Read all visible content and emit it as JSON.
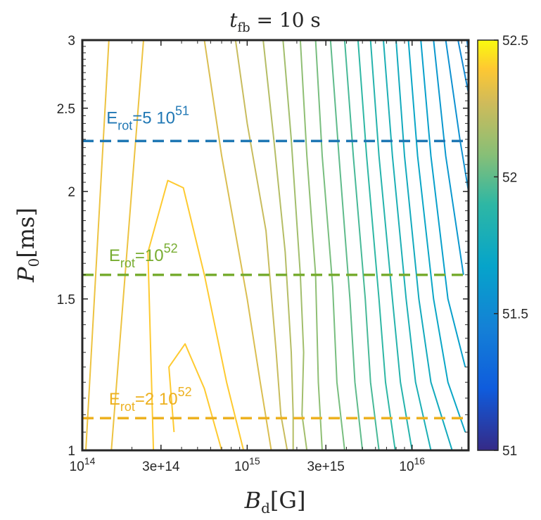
{
  "chart_data": {
    "type": "contour",
    "title": {
      "var": "t",
      "sub": "fb",
      "rest": " = 10 s"
    },
    "xlabel": {
      "var": "B",
      "sub": "d",
      "unit": "[G]"
    },
    "ylabel": {
      "var": "P",
      "sub": "0",
      "unit": "[ms]"
    },
    "x_scale": "log",
    "y_scale": "log",
    "xlim": [
      100000000000000.0,
      2.2e+16
    ],
    "ylim": [
      1,
      3
    ],
    "x_ticks": [
      {
        "value": 100000000000000.0,
        "label": "10",
        "sup": "14"
      },
      {
        "value": 300000000000000.0,
        "label": "3e+14",
        "sup": ""
      },
      {
        "value": 1000000000000000.0,
        "label": "10",
        "sup": "15"
      },
      {
        "value": 3000000000000000.0,
        "label": "3e+15",
        "sup": ""
      },
      {
        "value": 1e+16,
        "label": "10",
        "sup": "16"
      }
    ],
    "y_ticks": [
      {
        "value": 1,
        "label": "1"
      },
      {
        "value": 1.5,
        "label": "1.5"
      },
      {
        "value": 2,
        "label": "2"
      },
      {
        "value": 2.5,
        "label": "2.5"
      },
      {
        "value": 3,
        "label": "3"
      }
    ],
    "colorbar": {
      "range": [
        51,
        52.5
      ],
      "ticks": [
        51,
        51.5,
        52,
        52.5
      ],
      "tick_labels": [
        "51",
        "51.5",
        "52",
        "52.5"
      ]
    },
    "contours": [
      {
        "level": 52.4,
        "points": [
          [
            360000000000000.0,
            1.05
          ],
          [
            335000000000000.0,
            1.25
          ],
          [
            420000000000000.0,
            1.33
          ],
          [
            550000000000000.0,
            1.18
          ],
          [
            700000000000000.0,
            1.0
          ]
        ]
      },
      {
        "level": 52.4,
        "points": [
          [
            270000000000000.0,
            1.0
          ],
          [
            250000000000000.0,
            1.7
          ],
          [
            330000000000000.0,
            2.06
          ],
          [
            410000000000000.0,
            2.02
          ],
          [
            550000000000000.0,
            1.6
          ],
          [
            750000000000000.0,
            1.2
          ],
          [
            950000000000000.0,
            1.0
          ]
        ]
      },
      {
        "level": 52.35,
        "points": [
          [
            105000000000000.0,
            1.0
          ],
          [
            145000000000000.0,
            3.0
          ]
        ]
      },
      {
        "level": 52.35,
        "points": [
          [
            150000000000000.0,
            1.0
          ],
          [
            235000000000000.0,
            3.0
          ]
        ]
      },
      {
        "level": 52.3,
        "points": [
          [
            550000000000000.0,
            3.0
          ],
          [
            700000000000000.0,
            2.2
          ],
          [
            1000000000000000.0,
            1.5
          ],
          [
            1200000000000000.0,
            1.2
          ],
          [
            1400000000000000.0,
            1.0
          ]
        ]
      },
      {
        "level": 52.25,
        "points": [
          [
            850000000000000.0,
            3.0
          ],
          [
            1000000000000000.0,
            2.4
          ],
          [
            1300000000000000.0,
            1.8
          ],
          [
            1500000000000000.0,
            1.3
          ],
          [
            1600000000000000.0,
            1.1
          ],
          [
            1750000000000000.0,
            1.0
          ]
        ]
      },
      {
        "level": 52.2,
        "points": [
          [
            1250000000000000.0,
            3.0
          ],
          [
            1450000000000000.0,
            2.3
          ],
          [
            1700000000000000.0,
            1.7
          ],
          [
            1850000000000000.0,
            1.3
          ],
          [
            1900000000000000.0,
            1.1
          ],
          [
            1900000000000000.0,
            1.0
          ]
        ]
      },
      {
        "level": 52.15,
        "points": [
          [
            1650000000000000.0,
            3.0
          ],
          [
            1850000000000000.0,
            2.3
          ],
          [
            2100000000000000.0,
            1.6
          ],
          [
            2200000000000000.0,
            1.3
          ],
          [
            2150000000000000.0,
            1.1
          ],
          [
            2300000000000000.0,
            1.0
          ]
        ]
      },
      {
        "level": 52.1,
        "points": [
          [
            2100000000000000.0,
            3.0
          ],
          [
            2300000000000000.0,
            2.2
          ],
          [
            2600000000000000.0,
            1.6
          ],
          [
            2700000000000000.0,
            1.2
          ],
          [
            2850000000000000.0,
            1.0
          ]
        ]
      },
      {
        "level": 52.05,
        "points": [
          [
            2600000000000000.0,
            3.0
          ],
          [
            2850000000000000.0,
            2.2
          ],
          [
            3300000000000000.0,
            1.55
          ],
          [
            3500000000000000.0,
            1.2
          ],
          [
            3900000000000000.0,
            1.0
          ]
        ]
      },
      {
        "level": 52.0,
        "points": [
          [
            3200000000000000.0,
            3.0
          ],
          [
            3600000000000000.0,
            2.2
          ],
          [
            4200000000000000.0,
            1.5
          ],
          [
            4500000000000000.0,
            1.2
          ],
          [
            5000000000000000.0,
            1.0
          ]
        ]
      },
      {
        "level": 51.95,
        "points": [
          [
            3900000000000000.0,
            3.0
          ],
          [
            4400000000000000.0,
            2.2
          ],
          [
            5200000000000000.0,
            1.5
          ],
          [
            5600000000000000.0,
            1.2
          ],
          [
            6300000000000000.0,
            1.0
          ]
        ]
      },
      {
        "level": 51.9,
        "points": [
          [
            4700000000000000.0,
            3.0
          ],
          [
            5300000000000000.0,
            2.2
          ],
          [
            6300000000000000.0,
            1.5
          ],
          [
            6900000000000000.0,
            1.2
          ],
          [
            7900000000000000.0,
            1.0
          ]
        ]
      },
      {
        "level": 51.85,
        "points": [
          [
            5600000000000000.0,
            3.0
          ],
          [
            6300000000000000.0,
            2.2
          ],
          [
            7600000000000000.0,
            1.5
          ],
          [
            8500000000000000.0,
            1.2
          ],
          [
            1e+16,
            1.0
          ]
        ]
      },
      {
        "level": 51.8,
        "points": [
          [
            6700000000000000.0,
            3.0
          ],
          [
            7600000000000000.0,
            2.2
          ],
          [
            9200000000000000.0,
            1.5
          ],
          [
            1.05e+16,
            1.2
          ],
          [
            1.3e+16,
            1.0
          ]
        ]
      },
      {
        "level": 51.75,
        "points": [
          [
            8000000000000000.0,
            3.0
          ],
          [
            9000000000000000.0,
            2.2
          ],
          [
            1.1e+16,
            1.5
          ],
          [
            1.3e+16,
            1.2
          ],
          [
            1.75e+16,
            1.0
          ]
        ]
      },
      {
        "level": 51.7,
        "points": [
          [
            9500000000000000.0,
            3.0
          ],
          [
            1.08e+16,
            2.2
          ],
          [
            1.35e+16,
            1.5
          ],
          [
            1.65e+16,
            1.2
          ],
          [
            2.1e+16,
            1.05
          ]
        ]
      },
      {
        "level": 51.65,
        "points": [
          [
            1.13e+16,
            3.0
          ],
          [
            1.3e+16,
            2.2
          ],
          [
            1.65e+16,
            1.5
          ],
          [
            2.1e+16,
            1.25
          ]
        ]
      },
      {
        "level": 51.6,
        "points": [
          [
            1.35e+16,
            3.0
          ],
          [
            1.6e+16,
            2.2
          ],
          [
            2.05e+16,
            1.6
          ]
        ]
      },
      {
        "level": 51.55,
        "points": [
          [
            1.6e+16,
            3.0
          ],
          [
            1.95e+16,
            2.3
          ],
          [
            2.2e+16,
            2.0
          ]
        ]
      },
      {
        "level": 51.5,
        "points": [
          [
            1.9e+16,
            3.0
          ],
          [
            2.2e+16,
            2.6
          ]
        ]
      },
      {
        "level": 51.45,
        "points": [
          [
            2.15e+16,
            3.0
          ],
          [
            2.2e+16,
            2.9
          ]
        ]
      }
    ],
    "lines": [
      {
        "y": 2.29,
        "color": "#1f77b4",
        "name": "erot-5e51",
        "label": {
          "base": "E",
          "sub": "rot",
          "rest": "=5 10",
          "sup": "51",
          "at_x": 140000000000000.0,
          "at_y": 2.4
        }
      },
      {
        "y": 1.6,
        "color": "#77ac30",
        "name": "erot-1e52",
        "label": {
          "base": "E",
          "sub": "rot",
          "rest": "=10",
          "sup": "52",
          "at_x": 145000000000000.0,
          "at_y": 1.66
        }
      },
      {
        "y": 1.09,
        "color": "#edb120",
        "name": "erot-2e52",
        "label": {
          "base": "E",
          "sub": "rot",
          "rest": "=2 10",
          "sup": "52",
          "at_x": 145000000000000.0,
          "at_y": 1.13
        }
      }
    ]
  }
}
